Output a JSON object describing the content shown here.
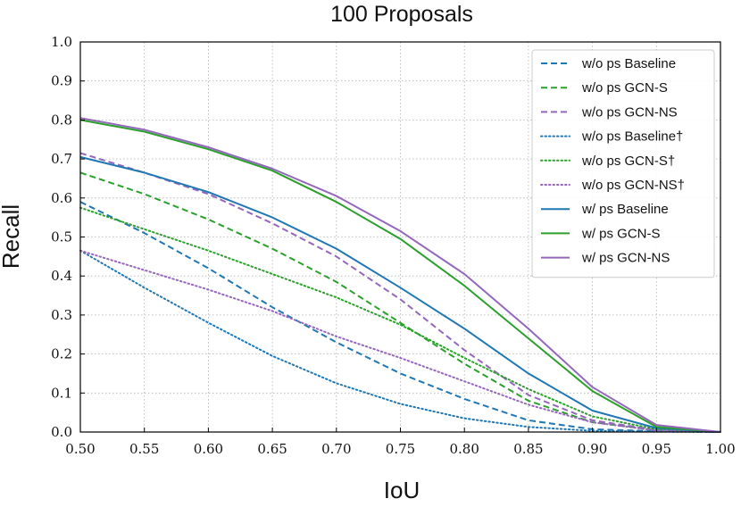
{
  "chart_data": {
    "type": "line",
    "title": "100 Proposals",
    "xlabel": "IoU",
    "ylabel": "Recall",
    "xlim": [
      0.5,
      1.0
    ],
    "ylim": [
      0.0,
      1.0
    ],
    "x": [
      0.5,
      0.55,
      0.6,
      0.65,
      0.7,
      0.75,
      0.8,
      0.85,
      0.9,
      0.95,
      1.0
    ],
    "xticks": [
      "0.50",
      "0.55",
      "0.60",
      "0.65",
      "0.70",
      "0.75",
      "0.80",
      "0.85",
      "0.90",
      "0.95",
      "1.00"
    ],
    "yticks": [
      "0.0",
      "0.1",
      "0.2",
      "0.3",
      "0.4",
      "0.5",
      "0.6",
      "0.7",
      "0.8",
      "0.9",
      "1.0"
    ],
    "grid": true,
    "legend_position": "top-right",
    "series": [
      {
        "name": "w/o ps Baseline",
        "color": "#1f77b4",
        "style": "dashed",
        "values": [
          0.59,
          0.51,
          0.42,
          0.32,
          0.23,
          0.15,
          0.085,
          0.03,
          0.007,
          0.002,
          0.0
        ]
      },
      {
        "name": "w/o ps GCN-S",
        "color": "#2ca02c",
        "style": "dashed",
        "values": [
          0.665,
          0.61,
          0.545,
          0.47,
          0.385,
          0.28,
          0.175,
          0.08,
          0.025,
          0.005,
          0.0
        ]
      },
      {
        "name": "w/o ps GCN-NS",
        "color": "#9467bd",
        "style": "dashed",
        "values": [
          0.715,
          0.665,
          0.61,
          0.535,
          0.45,
          0.34,
          0.21,
          0.095,
          0.03,
          0.005,
          0.0
        ]
      },
      {
        "name": "w/o ps Baseline†",
        "color": "#1f77b4",
        "style": "dotted",
        "values": [
          0.465,
          0.37,
          0.28,
          0.195,
          0.125,
          0.072,
          0.035,
          0.013,
          0.003,
          0.001,
          0.0
        ]
      },
      {
        "name": "w/o ps GCN-S†",
        "color": "#2ca02c",
        "style": "dotted",
        "values": [
          0.575,
          0.52,
          0.465,
          0.405,
          0.345,
          0.275,
          0.19,
          0.11,
          0.04,
          0.007,
          0.0
        ]
      },
      {
        "name": "w/o ps GCN-NS†",
        "color": "#9467bd",
        "style": "dotted",
        "values": [
          0.465,
          0.415,
          0.365,
          0.31,
          0.245,
          0.19,
          0.13,
          0.07,
          0.025,
          0.004,
          0.0
        ]
      },
      {
        "name": "w/ ps Baseline",
        "color": "#1f77b4",
        "style": "solid",
        "values": [
          0.705,
          0.665,
          0.615,
          0.55,
          0.47,
          0.37,
          0.265,
          0.15,
          0.055,
          0.01,
          0.0
        ]
      },
      {
        "name": "w/ ps GCN-S",
        "color": "#2ca02c",
        "style": "solid",
        "values": [
          0.8,
          0.77,
          0.725,
          0.67,
          0.59,
          0.495,
          0.375,
          0.24,
          0.105,
          0.013,
          0.0
        ]
      },
      {
        "name": "w/ ps GCN-NS",
        "color": "#9467bd",
        "style": "solid",
        "values": [
          0.805,
          0.775,
          0.73,
          0.675,
          0.605,
          0.515,
          0.405,
          0.265,
          0.115,
          0.018,
          0.0
        ]
      }
    ]
  }
}
